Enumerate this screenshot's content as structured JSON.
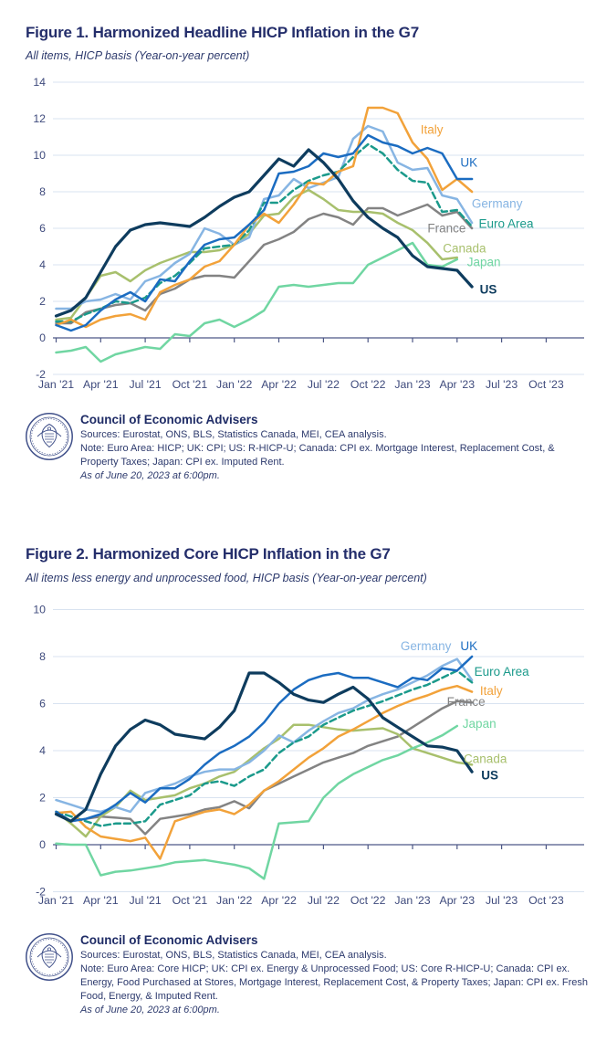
{
  "colors": {
    "title": "#242e6b",
    "axis_text": "#3e4a7c",
    "grid": "#d9e3f0",
    "axis_line": "#4d5886",
    "footer_text": "#2d3a6d",
    "seal": "#41518a",
    "us": "#0e3c5e",
    "uk": "#1b6cc1",
    "germany": "#87b5e3",
    "euro_area": "#1b9a8b",
    "france": "#838383",
    "canada": "#a8c06d",
    "japan": "#70d6a2",
    "italy": "#f2a23a"
  },
  "figure1": {
    "title": "Figure 1. Harmonized Headline HICP Inflation in the G7",
    "subtitle": "All items, HICP basis (Year-on-year percent)",
    "footer": {
      "org": "Council of Economic Advisers",
      "sources": "Sources: Eurostat, ONS, BLS, Statistics Canada, MEI, CEA analysis.",
      "note": "Note: Euro Area: HICP; UK: CPI; US: R-HICP-U; Canada: CPI ex. Mortgage Interest, Replacement Cost, & Property Taxes; Japan: CPI ex. Imputed Rent.",
      "asof": "As of June 20, 2023 at 6:00pm."
    }
  },
  "figure2": {
    "title": "Figure 2. Harmonized Core HICP Inflation in the G7",
    "subtitle": "All items less energy and unprocessed food, HICP basis (Year-on-year percent)",
    "footer": {
      "org": "Council of Economic Advisers",
      "sources": "Sources: Eurostat, ONS, BLS, Statistics Canada, MEI, CEA analysis.",
      "note": "Note: Euro Area: Core HICP; UK: CPI ex. Energy & Unprocessed Food; US: Core R-HICP-U; Canada: CPI ex. Energy, Food Purchased at Stores, Mortgage Interest, Replacement Cost, & Property Taxes; Japan: CPI ex. Fresh Food, Energy, & Imputed Rent.",
      "asof": "As of June 20, 2023 at 6:00pm."
    }
  },
  "chart_data": [
    {
      "type": "line",
      "title": "Figure 1. Harmonized Headline HICP Inflation in the G7",
      "subtitle": "All items, HICP basis (Year-on-year percent)",
      "x_start": "Jan 2021",
      "frequency": "monthly",
      "x_tick_labels": [
        "Jan '21",
        "Apr '21",
        "Jul '21",
        "Oct '21",
        "Jan '22",
        "Apr '22",
        "Jul '22",
        "Oct '22",
        "Jan '23",
        "Apr '23",
        "Jul '23",
        "Oct '23"
      ],
      "x_tick_month_step": 3,
      "ylim": [
        -2,
        14
      ],
      "yticks": [
        14,
        12,
        10,
        8,
        6,
        4,
        2,
        0,
        -2
      ],
      "grid": true,
      "legend": "end-of-line labels",
      "series": [
        {
          "name": "France",
          "color": "#838383",
          "dash": false,
          "width": 2.5,
          "label": {
            "m": 26.3,
            "v": 6.0,
            "bold": false
          },
          "values": [
            0.8,
            0.8,
            1.4,
            1.6,
            1.8,
            1.9,
            1.5,
            2.4,
            2.7,
            3.2,
            3.4,
            3.4,
            3.3,
            4.2,
            5.1,
            5.4,
            5.8,
            6.5,
            6.8,
            6.6,
            6.2,
            7.1,
            7.1,
            6.7,
            7.0,
            7.3,
            6.7,
            6.9,
            6.0
          ]
        },
        {
          "name": "Canada",
          "color": "#a8c06d",
          "dash": false,
          "width": 2.5,
          "label": {
            "m": 27.5,
            "v": 4.9,
            "bold": false
          },
          "values": [
            1.0,
            1.1,
            2.2,
            3.4,
            3.6,
            3.1,
            3.7,
            4.1,
            4.4,
            4.7,
            4.7,
            4.8,
            5.1,
            5.7,
            6.7,
            6.8,
            7.7,
            8.1,
            7.6,
            7.0,
            6.9,
            6.9,
            6.8,
            6.3,
            5.9,
            5.2,
            4.3,
            4.4
          ]
        },
        {
          "name": "Japan",
          "color": "#70d6a2",
          "dash": false,
          "width": 2.5,
          "label": {
            "m": 28.8,
            "v": 4.15,
            "bold": false
          },
          "values": [
            -0.8,
            -0.7,
            -0.5,
            -1.3,
            -0.9,
            -0.7,
            -0.5,
            -0.6,
            0.2,
            0.1,
            0.8,
            1.0,
            0.6,
            1.0,
            1.5,
            2.8,
            2.9,
            2.8,
            2.9,
            3.0,
            3.0,
            4.0,
            4.4,
            4.8,
            5.2,
            4.0,
            3.9,
            4.3
          ]
        },
        {
          "name": "Germany",
          "color": "#87b5e3",
          "dash": false,
          "width": 2.5,
          "label": {
            "m": 29.7,
            "v": 7.35,
            "bold": false
          },
          "values": [
            1.6,
            1.6,
            2.0,
            2.1,
            2.4,
            2.1,
            3.1,
            3.4,
            4.1,
            4.6,
            6.0,
            5.7,
            5.1,
            5.5,
            7.6,
            7.8,
            8.7,
            8.2,
            8.5,
            8.8,
            10.9,
            11.6,
            11.3,
            9.6,
            9.2,
            9.3,
            7.8,
            7.6,
            6.3
          ]
        },
        {
          "name": "Euro Area",
          "color": "#1b9a8b",
          "dash": true,
          "width": 2.5,
          "label": {
            "m": 30.3,
            "v": 6.25,
            "bold": false
          },
          "values": [
            0.9,
            0.9,
            1.3,
            1.6,
            2.0,
            1.9,
            2.2,
            3.0,
            3.4,
            4.1,
            4.9,
            5.0,
            5.1,
            5.9,
            7.4,
            7.4,
            8.1,
            8.6,
            8.9,
            9.1,
            9.9,
            10.6,
            10.1,
            9.2,
            8.6,
            8.5,
            6.9,
            7.0,
            6.1
          ]
        },
        {
          "name": "Italy",
          "color": "#f2a23a",
          "dash": false,
          "width": 2.5,
          "label": {
            "m": 25.3,
            "v": 11.4,
            "bold": false
          },
          "values": [
            0.7,
            1.0,
            0.6,
            1.0,
            1.2,
            1.3,
            1.0,
            2.5,
            2.9,
            3.2,
            3.9,
            4.2,
            5.1,
            6.2,
            6.8,
            6.3,
            7.3,
            8.5,
            8.4,
            9.1,
            9.4,
            12.6,
            12.6,
            12.3,
            10.7,
            9.8,
            8.1,
            8.7,
            8.0
          ]
        },
        {
          "name": "UK",
          "color": "#1b6cc1",
          "dash": false,
          "width": 2.5,
          "label": {
            "m": 27.8,
            "v": 9.6,
            "bold": false
          },
          "values": [
            0.7,
            0.4,
            0.7,
            1.5,
            2.1,
            2.5,
            2.0,
            3.2,
            3.1,
            4.2,
            5.1,
            5.4,
            5.5,
            6.2,
            7.0,
            9.0,
            9.1,
            9.4,
            10.1,
            9.9,
            10.1,
            11.1,
            10.7,
            10.5,
            10.1,
            10.4,
            10.1,
            8.7,
            8.7
          ]
        },
        {
          "name": "US",
          "color": "#0e3c5e",
          "dash": false,
          "width": 3.2,
          "label": {
            "m": 29.1,
            "v": 2.65,
            "bold": true
          },
          "values": [
            1.2,
            1.5,
            2.2,
            3.6,
            5.0,
            5.9,
            6.2,
            6.3,
            6.2,
            6.1,
            6.6,
            7.2,
            7.7,
            8.0,
            8.9,
            9.8,
            9.4,
            10.3,
            9.6,
            8.7,
            7.5,
            6.6,
            6.0,
            5.5,
            4.5,
            3.9,
            3.8,
            3.7,
            2.8
          ]
        }
      ]
    },
    {
      "type": "line",
      "title": "Figure 2. Harmonized Core HICP Inflation in the G7",
      "subtitle": "All items less energy and unprocessed food, HICP basis (Year-on-year percent)",
      "x_start": "Jan 2021",
      "frequency": "monthly",
      "x_tick_labels": [
        "Jan '21",
        "Apr '21",
        "Jul '21",
        "Oct '21",
        "Jan '22",
        "Apr '22",
        "Jul '22",
        "Oct '22",
        "Jan '23",
        "Apr '23",
        "Jul '23",
        "Oct '23"
      ],
      "x_tick_month_step": 3,
      "ylim": [
        -2,
        10
      ],
      "yticks": [
        10,
        8,
        6,
        4,
        2,
        0,
        -2
      ],
      "grid": true,
      "legend": "end-of-line labels",
      "series": [
        {
          "name": "France",
          "color": "#838383",
          "dash": false,
          "width": 2.5,
          "label": {
            "m": 27.6,
            "v": 6.08,
            "bold": false
          },
          "values": [
            1.3,
            1.0,
            1.1,
            1.2,
            1.15,
            1.1,
            0.45,
            1.1,
            1.2,
            1.3,
            1.5,
            1.6,
            1.85,
            1.55,
            2.3,
            2.6,
            2.9,
            3.2,
            3.5,
            3.7,
            3.9,
            4.2,
            4.4,
            4.6,
            5.0,
            5.4,
            5.8,
            6.1,
            6.05
          ]
        },
        {
          "name": "Canada",
          "color": "#a8c06d",
          "dash": false,
          "width": 2.5,
          "label": {
            "m": 28.9,
            "v": 3.65,
            "bold": false
          },
          "values": [
            1.4,
            0.9,
            0.35,
            1.2,
            1.6,
            2.3,
            1.9,
            2.0,
            2.1,
            2.4,
            2.6,
            2.9,
            3.1,
            3.6,
            4.1,
            4.5,
            5.1,
            5.1,
            5.0,
            4.9,
            4.85,
            4.9,
            4.95,
            4.7,
            4.1,
            3.9,
            3.7,
            3.5,
            3.4
          ]
        },
        {
          "name": "Japan",
          "color": "#70d6a2",
          "dash": false,
          "width": 2.5,
          "label": {
            "m": 28.5,
            "v": 5.15,
            "bold": false
          },
          "values": [
            0.05,
            0.0,
            0.0,
            -1.3,
            -1.15,
            -1.1,
            -1.0,
            -0.9,
            -0.75,
            -0.7,
            -0.65,
            -0.75,
            -0.85,
            -1.0,
            -1.45,
            0.9,
            0.95,
            1.0,
            2.0,
            2.6,
            3.0,
            3.3,
            3.6,
            3.8,
            4.1,
            4.35,
            4.65,
            5.05
          ]
        },
        {
          "name": "Germany",
          "color": "#87b5e3",
          "dash": false,
          "width": 2.5,
          "label": {
            "m": 24.9,
            "v": 8.45,
            "bold": false
          },
          "values": [
            1.9,
            1.7,
            1.5,
            1.4,
            1.6,
            1.4,
            2.2,
            2.4,
            2.6,
            2.9,
            3.1,
            3.2,
            3.2,
            3.5,
            4.0,
            4.65,
            4.35,
            4.85,
            5.25,
            5.6,
            5.8,
            6.15,
            6.4,
            6.6,
            6.9,
            7.2,
            7.6,
            7.9,
            7.0
          ]
        },
        {
          "name": "Euro Area",
          "color": "#1b9a8b",
          "dash": true,
          "width": 2.5,
          "label": {
            "m": 30.0,
            "v": 7.35,
            "bold": false
          },
          "values": [
            1.4,
            1.2,
            1.0,
            0.8,
            0.9,
            0.9,
            1.0,
            1.7,
            1.9,
            2.1,
            2.6,
            2.7,
            2.5,
            2.9,
            3.2,
            3.9,
            4.35,
            4.6,
            5.1,
            5.4,
            5.7,
            5.9,
            6.1,
            6.35,
            6.6,
            6.8,
            7.1,
            7.4,
            6.9
          ]
        },
        {
          "name": "Italy",
          "color": "#f2a23a",
          "dash": false,
          "width": 2.5,
          "label": {
            "m": 29.3,
            "v": 6.55,
            "bold": false
          },
          "values": [
            1.35,
            1.4,
            0.75,
            0.35,
            0.25,
            0.15,
            0.3,
            -0.6,
            1.0,
            1.2,
            1.4,
            1.5,
            1.3,
            1.7,
            2.3,
            2.7,
            3.2,
            3.7,
            4.1,
            4.6,
            4.9,
            5.25,
            5.6,
            5.9,
            6.15,
            6.35,
            6.6,
            6.75,
            6.5
          ]
        },
        {
          "name": "UK",
          "color": "#1b6cc1",
          "dash": false,
          "width": 2.5,
          "label": {
            "m": 27.8,
            "v": 8.45,
            "bold": false
          },
          "values": [
            1.4,
            1.0,
            1.1,
            1.3,
            1.7,
            2.2,
            1.8,
            2.4,
            2.4,
            2.8,
            3.4,
            3.9,
            4.2,
            4.6,
            5.2,
            6.0,
            6.6,
            7.0,
            7.2,
            7.3,
            7.1,
            7.1,
            6.9,
            6.7,
            7.1,
            7.0,
            7.5,
            7.4,
            8.0
          ]
        },
        {
          "name": "US",
          "color": "#0e3c5e",
          "dash": false,
          "width": 3.2,
          "label": {
            "m": 29.2,
            "v": 2.95,
            "bold": true
          },
          "values": [
            1.3,
            1.0,
            1.5,
            3.0,
            4.2,
            4.9,
            5.3,
            5.1,
            4.7,
            4.6,
            4.5,
            5.0,
            5.7,
            7.3,
            7.3,
            6.9,
            6.4,
            6.15,
            6.05,
            6.4,
            6.7,
            6.2,
            5.4,
            5.0,
            4.6,
            4.2,
            4.15,
            4.0,
            3.1
          ]
        }
      ]
    }
  ]
}
